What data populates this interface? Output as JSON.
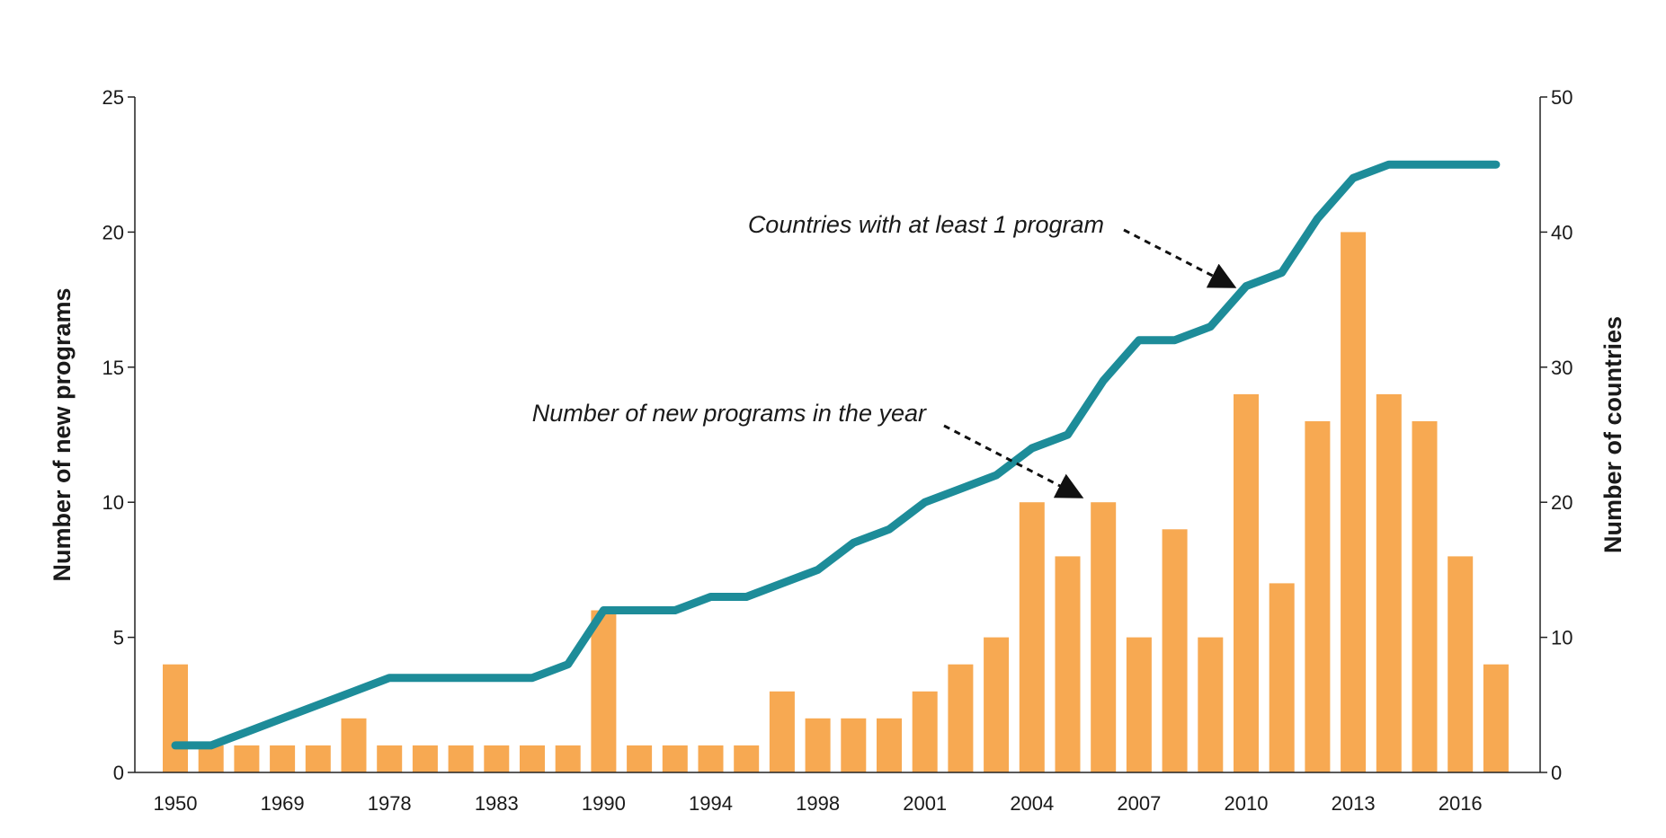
{
  "chart_data": {
    "type": "bar",
    "title": "",
    "xlabel": "",
    "ylabel": "Number of new programs",
    "y2label": "Number of countries",
    "ylim": [
      0,
      25
    ],
    "y2lim": [
      0,
      50
    ],
    "yticks": [
      0,
      5,
      10,
      15,
      20,
      25
    ],
    "y2ticks": [
      0,
      10,
      20,
      30,
      40,
      50
    ],
    "categories": [
      "1950",
      "",
      "",
      "1969",
      "",
      "",
      "1978",
      "",
      "",
      "1983",
      "",
      "",
      "1990",
      "",
      "",
      "1994",
      "",
      "",
      "1998",
      "",
      "",
      "2001",
      "",
      "",
      "2004",
      "",
      "",
      "2007",
      "",
      "",
      "2010",
      "",
      "",
      "2013",
      "",
      "",
      "2016",
      ""
    ],
    "x_tick_labels": [
      "1950",
      "1969",
      "1978",
      "1983",
      "1990",
      "1994",
      "1998",
      "2001",
      "2004",
      "2007",
      "2010",
      "2013",
      "2016"
    ],
    "grid": false,
    "series": [
      {
        "name": "Number of new programs in the year",
        "type": "bar",
        "axis": "left",
        "color": "#f7a952",
        "values": [
          4,
          1,
          1,
          1,
          1,
          2,
          1,
          1,
          1,
          1,
          1,
          1,
          6,
          1,
          1,
          1,
          1,
          3,
          2,
          2,
          2,
          3,
          4,
          5,
          10,
          8,
          10,
          5,
          9,
          5,
          14,
          7,
          13,
          20,
          14,
          13,
          8,
          4
        ]
      },
      {
        "name": "Countries with at least 1 program",
        "type": "line",
        "axis": "right",
        "color": "#1d8c99",
        "values": [
          2,
          2,
          3,
          4,
          5,
          6,
          7,
          7,
          7,
          7,
          7,
          8,
          12,
          12,
          12,
          13,
          13,
          14,
          15,
          17,
          18,
          20,
          21,
          22,
          24,
          25,
          29,
          32,
          32,
          33,
          36,
          37,
          41,
          44,
          45,
          45,
          45,
          45
        ]
      }
    ],
    "annotations": [
      {
        "id": "line-annotation",
        "text": "Countries with at least 1 program",
        "points_to": "Countries with at least 1 program"
      },
      {
        "id": "bar-annotation",
        "text": "Number of new programs in the year",
        "points_to": "Number of new programs in the year"
      }
    ]
  }
}
